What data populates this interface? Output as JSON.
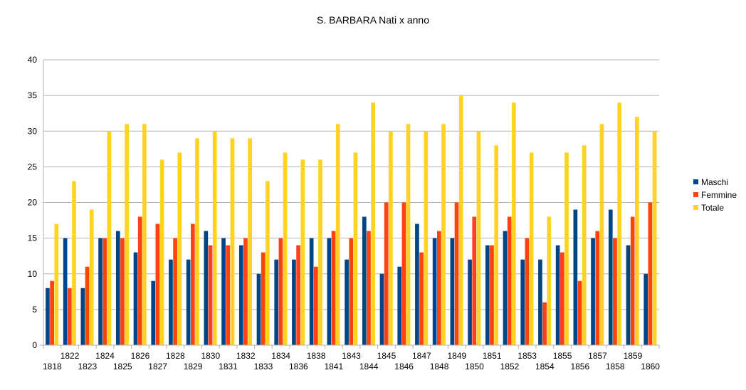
{
  "chart_data": {
    "type": "bar",
    "title": "S. BARBARA  Nati x anno",
    "xlabel": "",
    "ylabel": "",
    "ylim": [
      0,
      40
    ],
    "y_ticks": [
      0,
      5,
      10,
      15,
      20,
      25,
      30,
      35,
      40
    ],
    "grid": true,
    "legend_position": "right",
    "categories": [
      "1818",
      "1822",
      "1823",
      "1824",
      "1825",
      "1826",
      "1827",
      "1828",
      "1829",
      "1830",
      "1831",
      "1832",
      "1833",
      "1834",
      "1836",
      "1838",
      "1841",
      "1843",
      "1844",
      "1845",
      "1846",
      "1847",
      "1848",
      "1849",
      "1850",
      "1851",
      "1852",
      "1853",
      "1854",
      "1855",
      "1856",
      "1857",
      "1858",
      "1859",
      "1860"
    ],
    "series": [
      {
        "name": "Maschi",
        "color": "#004586",
        "values": [
          8,
          15,
          8,
          15,
          16,
          13,
          9,
          12,
          12,
          16,
          15,
          14,
          10,
          12,
          12,
          15,
          15,
          12,
          18,
          10,
          11,
          17,
          15,
          15,
          12,
          14,
          16,
          12,
          12,
          14,
          19,
          15,
          19,
          14,
          10
        ]
      },
      {
        "name": "Femmine",
        "color": "#ff420e",
        "values": [
          9,
          8,
          11,
          15,
          15,
          18,
          17,
          15,
          17,
          14,
          14,
          15,
          13,
          15,
          14,
          11,
          16,
          15,
          16,
          20,
          20,
          13,
          16,
          20,
          18,
          14,
          18,
          15,
          6,
          13,
          9,
          16,
          15,
          18,
          20
        ]
      },
      {
        "name": "Totale",
        "color": "#ffd320",
        "values": [
          17,
          23,
          19,
          30,
          31,
          31,
          26,
          27,
          29,
          30,
          29,
          29,
          23,
          27,
          26,
          26,
          31,
          27,
          34,
          30,
          31,
          30,
          31,
          35,
          30,
          28,
          34,
          27,
          18,
          27,
          28,
          31,
          34,
          32,
          30
        ]
      }
    ]
  }
}
